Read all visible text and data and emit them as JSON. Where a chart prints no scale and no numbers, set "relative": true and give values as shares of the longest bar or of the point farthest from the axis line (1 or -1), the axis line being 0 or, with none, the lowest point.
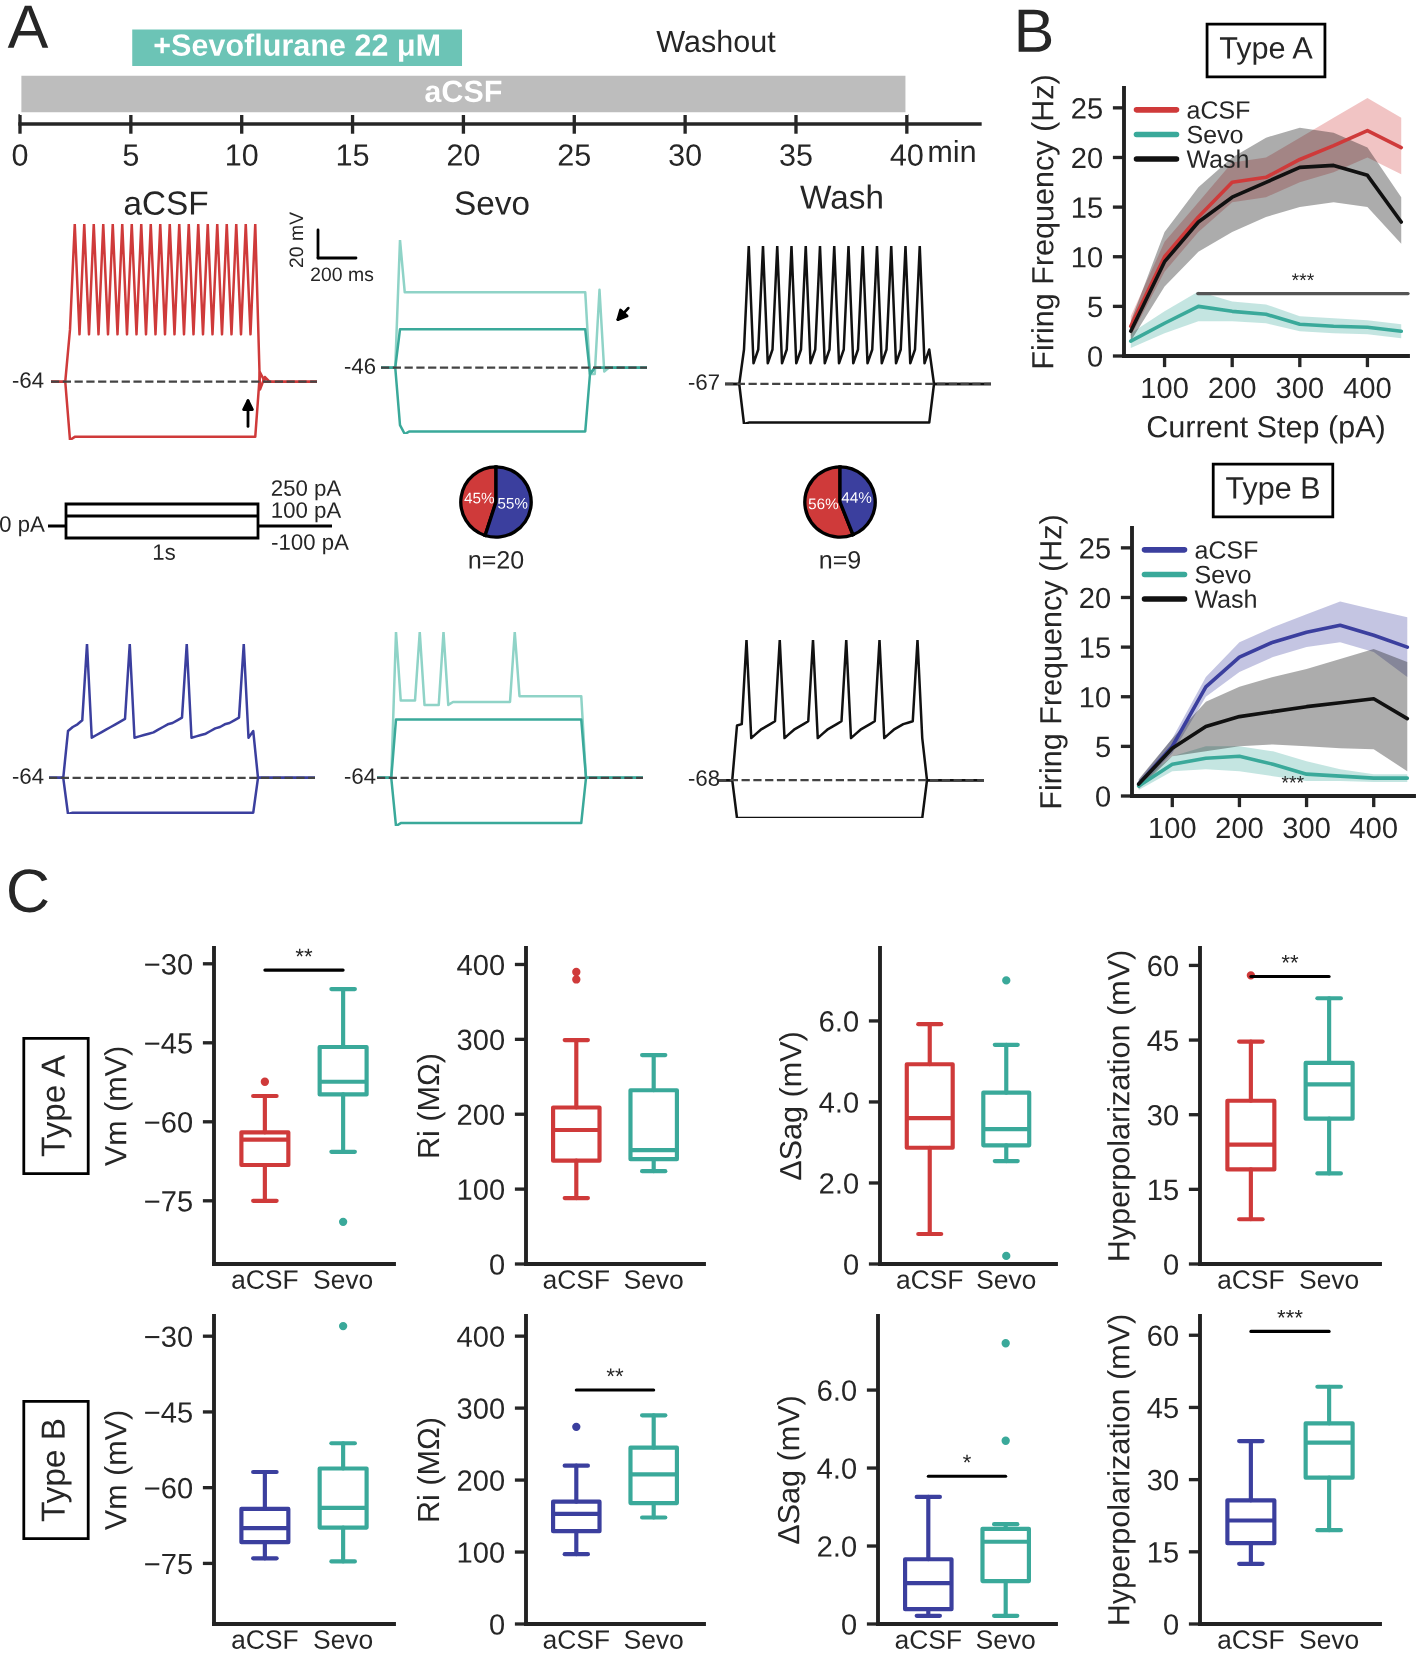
{
  "chart_data": [
    {
      "type": "bar",
      "orientation": "horizontal",
      "categories": [
        null,
        null
      ],
      "base": [
        5,
        0
      ],
      "values": [
        15,
        40
      ],
      "colors": [
        "#6cc4b6",
        "#bdbdbd"
      ],
      "value_labels": [
        "+Sevoflurane 22 μM",
        "aCSF"
      ],
      "xlabel": "min",
      "xlim": [
        0,
        43.3
      ],
      "xticks": [
        0,
        5,
        10,
        15,
        20,
        25,
        30,
        35,
        40
      ],
      "annotations": [
        "A",
        "Washout"
      ]
    },
    {
      "type": "line",
      "relative": true,
      "title": "aCSF",
      "annotations": [
        "-64",
        "20 mV",
        "200 ms"
      ],
      "ref_lines": [
        {
          "axis": "y",
          "value": 0,
          "line_style": "dashed",
          "color": "#444444"
        }
      ],
      "categories": [
        null,
        null,
        null,
        null,
        null,
        null,
        null,
        null,
        null,
        null,
        null,
        null,
        null,
        null,
        null,
        null,
        null,
        null,
        null,
        null,
        null,
        null,
        null,
        null,
        null,
        null,
        null,
        null,
        null,
        null,
        null,
        null,
        null,
        null,
        null,
        null,
        null,
        null,
        null,
        null,
        null,
        null,
        null,
        null,
        null,
        null,
        null,
        null,
        null,
        null,
        null,
        null,
        null,
        null,
        null,
        null,
        null
      ],
      "series": [
        {
          "color": "#cf3a3a",
          "values": [
            0,
            0,
            0,
            0,
            0.33,
            1,
            0.3,
            1,
            0.3,
            1,
            0.3,
            1,
            0.3,
            1,
            0.3,
            1,
            0.3,
            1,
            0.3,
            1,
            0.3,
            1,
            0.3,
            1,
            0.3,
            1,
            0.3,
            1,
            0.3,
            1,
            0.3,
            1,
            0.3,
            1,
            0.3,
            1,
            0.3,
            1,
            0.3,
            1,
            0.3,
            1,
            0.3,
            1,
            -0.05,
            0.03,
            0,
            0,
            0,
            0,
            0,
            0,
            0,
            0,
            0,
            0,
            0
          ]
        },
        {
          "color": "#cf3a3a",
          "values": [
            0,
            0,
            0,
            0,
            -0.37,
            -0.35,
            -0.35,
            -0.35,
            -0.35,
            -0.35,
            -0.35,
            -0.35,
            -0.35,
            -0.35,
            -0.35,
            -0.35,
            -0.35,
            -0.35,
            -0.35,
            -0.35,
            -0.35,
            -0.35,
            -0.35,
            -0.35,
            -0.35,
            -0.35,
            -0.35,
            -0.35,
            -0.35,
            -0.35,
            -0.35,
            -0.35,
            -0.35,
            -0.35,
            -0.35,
            -0.35,
            -0.35,
            -0.35,
            -0.35,
            -0.35,
            -0.35,
            -0.35,
            -0.35,
            -0.35,
            0.06,
            0,
            0,
            0,
            0,
            0,
            0,
            0,
            0,
            0,
            0,
            0,
            0
          ]
        }
      ]
    },
    {
      "type": "line",
      "relative": true,
      "title": "Sevo",
      "annotations": [
        "-46"
      ],
      "ref_lines": [
        {
          "axis": "y",
          "value": 0,
          "line_style": "dashed",
          "color": "#444444"
        }
      ],
      "categories": [
        null,
        null,
        null,
        null,
        null,
        null,
        null,
        null,
        null,
        null,
        null,
        null,
        null,
        null,
        null,
        null,
        null,
        null,
        null,
        null,
        null,
        null,
        null,
        null,
        null,
        null,
        null,
        null,
        null,
        null,
        null,
        null,
        null,
        null,
        null,
        null,
        null,
        null,
        null,
        null,
        null,
        null,
        null,
        null,
        null,
        null,
        null,
        null,
        null,
        null,
        null,
        null,
        null,
        null,
        null,
        null,
        null
      ],
      "series": [
        {
          "color": "#8fd3c7",
          "values": [
            0,
            0,
            0,
            0,
            1,
            0.59,
            0.59,
            0.59,
            0.59,
            0.59,
            0.59,
            0.59,
            0.59,
            0.59,
            0.59,
            0.59,
            0.59,
            0.59,
            0.59,
            0.59,
            0.59,
            0.59,
            0.59,
            0.59,
            0.59,
            0.59,
            0.59,
            0.59,
            0.59,
            0.59,
            0.59,
            0.59,
            0.59,
            0.59,
            0.59,
            0.59,
            0.59,
            0.59,
            0.59,
            0.59,
            0.59,
            0.59,
            0.59,
            0.59,
            -0.05,
            -0.05,
            0.61,
            -0.03,
            0,
            0,
            0,
            0,
            0,
            0,
            0,
            0,
            0
          ]
        },
        {
          "color": "#3aa99a",
          "values": [
            0,
            0,
            0,
            0,
            0.3,
            0.3,
            0.3,
            0.3,
            0.3,
            0.3,
            0.3,
            0.3,
            0.3,
            0.3,
            0.3,
            0.3,
            0.3,
            0.3,
            0.3,
            0.3,
            0.3,
            0.3,
            0.3,
            0.3,
            0.3,
            0.3,
            0.3,
            0.3,
            0.3,
            0.3,
            0.3,
            0.3,
            0.3,
            0.3,
            0.3,
            0.3,
            0.3,
            0.3,
            0.3,
            0.3,
            0.3,
            0.3,
            0.3,
            0.3,
            -0.05,
            0,
            0,
            0,
            0,
            0,
            0,
            0,
            0,
            0,
            0,
            0,
            0
          ]
        },
        {
          "color": "#3aa99a",
          "values": [
            0,
            0,
            0,
            0,
            -0.45,
            -0.52,
            -0.5,
            -0.5,
            -0.5,
            -0.5,
            -0.5,
            -0.5,
            -0.5,
            -0.5,
            -0.5,
            -0.5,
            -0.5,
            -0.5,
            -0.5,
            -0.5,
            -0.5,
            -0.5,
            -0.5,
            -0.5,
            -0.5,
            -0.5,
            -0.5,
            -0.5,
            -0.5,
            -0.5,
            -0.5,
            -0.5,
            -0.5,
            -0.5,
            -0.5,
            -0.5,
            -0.5,
            -0.5,
            -0.5,
            -0.5,
            -0.5,
            -0.5,
            -0.5,
            -0.5,
            -0.05,
            0,
            0,
            0,
            0,
            0,
            0,
            0,
            0,
            0,
            0,
            0,
            0
          ]
        }
      ]
    },
    {
      "type": "line",
      "relative": true,
      "title": "Wash",
      "annotations": [
        "-67"
      ],
      "ref_lines": [
        {
          "axis": "y",
          "value": 0,
          "line_style": "dashed",
          "color": "#444444"
        }
      ],
      "categories": [
        null,
        null,
        null,
        null,
        null,
        null,
        null,
        null,
        null,
        null,
        null,
        null,
        null,
        null,
        null,
        null,
        null,
        null,
        null,
        null,
        null,
        null,
        null,
        null,
        null,
        null,
        null,
        null,
        null,
        null,
        null,
        null,
        null,
        null,
        null,
        null,
        null,
        null,
        null,
        null,
        null,
        null,
        null,
        null,
        null,
        null,
        null,
        null,
        null,
        null,
        null,
        null,
        null,
        null,
        null,
        null,
        null
      ],
      "series": [
        {
          "color": "#111111",
          "values": [
            0,
            0,
            0,
            0,
            0.25,
            1,
            0.15,
            0.25,
            1,
            0.15,
            0.25,
            1,
            0.15,
            0.25,
            1,
            0.15,
            0.25,
            1,
            0.15,
            0.25,
            1,
            0.15,
            0.25,
            1,
            0.15,
            0.25,
            1,
            0.15,
            0.25,
            1,
            0.15,
            0.25,
            1,
            0.15,
            0.25,
            1,
            0.15,
            0.25,
            1,
            0.15,
            0.25,
            1,
            0.15,
            0.25,
            0,
            0,
            0,
            0,
            0,
            0,
            0,
            0,
            0,
            0,
            0,
            0,
            0
          ]
        },
        {
          "color": "#111111",
          "values": [
            0,
            0,
            0,
            0,
            -0.29,
            -0.28,
            -0.28,
            -0.28,
            -0.28,
            -0.28,
            -0.28,
            -0.28,
            -0.28,
            -0.28,
            -0.28,
            -0.28,
            -0.28,
            -0.28,
            -0.28,
            -0.28,
            -0.28,
            -0.28,
            -0.28,
            -0.28,
            -0.28,
            -0.28,
            -0.28,
            -0.28,
            -0.28,
            -0.28,
            -0.28,
            -0.28,
            -0.28,
            -0.28,
            -0.28,
            -0.28,
            -0.28,
            -0.28,
            -0.28,
            -0.28,
            -0.28,
            -0.28,
            -0.28,
            -0.28,
            0,
            0,
            0,
            0,
            0,
            0,
            0,
            0,
            0,
            0,
            0,
            0,
            0
          ]
        }
      ]
    },
    {
      "type": "other",
      "annotations": [
        "0 pA",
        "1s",
        "250 pA",
        "100 pA",
        "-100 pA"
      ]
    },
    {
      "type": "pie",
      "categories": [
        null,
        null
      ],
      "values": [
        45,
        55
      ],
      "colors": [
        "#cf3a3a",
        "#3b3f9e"
      ],
      "value_labels": [
        "45%",
        "55%"
      ],
      "annotations": [
        "n=20"
      ]
    },
    {
      "type": "pie",
      "categories": [
        null,
        null
      ],
      "values": [
        56,
        44
      ],
      "colors": [
        "#cf3a3a",
        "#3b3f9e"
      ],
      "value_labels": [
        "56%",
        "44%"
      ],
      "annotations": [
        "n=9"
      ]
    },
    {
      "type": "line",
      "title": "Type A",
      "x": [
        50,
        100,
        150,
        200,
        250,
        300,
        350,
        400,
        450
      ],
      "xlabel": "Current Step (pA)",
      "ylabel": "Firing Frequency (Hz)",
      "xlim": [
        40,
        460
      ],
      "ylim": [
        0,
        27
      ],
      "xticks": [
        100,
        200,
        300,
        400
      ],
      "yticks": [
        0,
        5,
        10,
        15,
        20,
        25
      ],
      "legend": "top left",
      "series": [
        {
          "name": "aCSF",
          "color": "#cf3a3a",
          "values": [
            3,
            10,
            14,
            17.5,
            18,
            19.8,
            21.2,
            22.7,
            21
          ],
          "lower": [
            2,
            8.5,
            12.5,
            15.5,
            16,
            17.5,
            18.5,
            20,
            18.3
          ],
          "upper": [
            4,
            11.5,
            15.5,
            19.5,
            20,
            22,
            24,
            26,
            24
          ]
        },
        {
          "name": "Sevo",
          "color": "#3aa99a",
          "values": [
            1.5,
            3.3,
            5,
            4.5,
            4.2,
            3.2,
            3,
            2.9,
            2.5
          ],
          "lower": [
            0.8,
            2.3,
            3.5,
            3.5,
            3.3,
            2.5,
            2.3,
            2.2,
            1.8
          ],
          "upper": [
            2.3,
            4.5,
            6.5,
            5.5,
            5.2,
            4,
            3.8,
            3.6,
            3.2
          ]
        },
        {
          "name": "Wash",
          "color": "#111111",
          "values": [
            2.5,
            9.5,
            13.5,
            16,
            17.5,
            19,
            19.2,
            18.2,
            13.5
          ],
          "lower": [
            1.5,
            7,
            10.5,
            12.5,
            14,
            15,
            15.5,
            15,
            11.3
          ],
          "upper": [
            3.5,
            12.5,
            17,
            20,
            22,
            23,
            22.5,
            21,
            16
          ]
        }
      ],
      "annotations": [
        "B",
        "***"
      ]
    },
    {
      "type": "line",
      "title": "Type B",
      "x": [
        50,
        100,
        150,
        200,
        250,
        300,
        350,
        400,
        450
      ],
      "ylabel": "Firing Frequency (Hz)",
      "xlim": [
        40,
        460
      ],
      "ylim": [
        0,
        27
      ],
      "xticks": [
        100,
        200,
        300,
        400
      ],
      "yticks": [
        0,
        5,
        10,
        15,
        20,
        25
      ],
      "legend": "top left",
      "series": [
        {
          "name": "aCSF",
          "color": "#3b3f9e",
          "values": [
            1.2,
            5,
            11,
            14,
            15.5,
            16.5,
            17.2,
            16.2,
            15
          ],
          "lower": [
            0.8,
            4.3,
            10,
            12.5,
            14,
            15,
            15.5,
            14.5,
            12
          ],
          "upper": [
            1.6,
            5.8,
            12,
            15.5,
            17,
            18.3,
            19.6,
            18.8,
            18
          ]
        },
        {
          "name": "Sevo",
          "color": "#3aa99a",
          "values": [
            1,
            3.2,
            3.8,
            4,
            3.2,
            2.2,
            2,
            1.8,
            1.8
          ],
          "lower": [
            0.6,
            2.5,
            2.7,
            2.5,
            2,
            1.5,
            1.5,
            1.4,
            1.4
          ],
          "upper": [
            1.4,
            4,
            5,
            5,
            4.5,
            3.5,
            2.7,
            2.2,
            2.2
          ]
        },
        {
          "name": "Wash",
          "color": "#111111",
          "values": [
            1.2,
            4.8,
            7,
            8,
            8.5,
            9,
            9.4,
            9.8,
            7.8
          ],
          "lower": [
            0.7,
            4,
            4.5,
            5,
            5.2,
            5,
            4.8,
            4.7,
            2.5
          ],
          "upper": [
            1.7,
            5.8,
            9.5,
            11,
            12,
            12.8,
            13.8,
            14.8,
            13.5
          ]
        }
      ],
      "annotations": [
        "***"
      ]
    },
    {
      "type": "line",
      "relative": true,
      "annotations": [
        "-64"
      ],
      "ref_lines": [
        {
          "axis": "y",
          "value": 0,
          "line_style": "dashed",
          "color": "#444444"
        }
      ],
      "categories": [
        null,
        null,
        null,
        null,
        null,
        null,
        null,
        null,
        null,
        null,
        null,
        null,
        null,
        null,
        null,
        null,
        null,
        null,
        null,
        null,
        null,
        null,
        null,
        null,
        null,
        null,
        null,
        null,
        null,
        null,
        null,
        null,
        null,
        null,
        null,
        null,
        null,
        null,
        null,
        null,
        null,
        null,
        null,
        null,
        null,
        null,
        null,
        null,
        null,
        null,
        null,
        null,
        null,
        null,
        null,
        null,
        null
      ],
      "series": [
        {
          "color": "#3b3f9e",
          "values": [
            0,
            0,
            0,
            0,
            0.35,
            0.38,
            0.4,
            0.43,
            1,
            0.3,
            0.32,
            0.34,
            0.36,
            0.38,
            0.4,
            0.42,
            0.44,
            1,
            0.3,
            0.31,
            0.32,
            0.33,
            0.34,
            0.36,
            0.38,
            0.4,
            0.41,
            0.43,
            0.45,
            1,
            0.3,
            0.31,
            0.32,
            0.33,
            0.35,
            0.37,
            0.38,
            0.4,
            0.41,
            0.43,
            0.45,
            1,
            0.3,
            0.35,
            0,
            0,
            0,
            0,
            0,
            0,
            0,
            0,
            0,
            0,
            0,
            0,
            0
          ]
        },
        {
          "color": "#3b3f9e",
          "values": [
            0,
            0,
            0,
            0,
            -0.27,
            -0.26,
            -0.26,
            -0.26,
            -0.26,
            -0.26,
            -0.26,
            -0.26,
            -0.26,
            -0.26,
            -0.26,
            -0.26,
            -0.26,
            -0.26,
            -0.26,
            -0.26,
            -0.26,
            -0.26,
            -0.26,
            -0.26,
            -0.26,
            -0.26,
            -0.26,
            -0.26,
            -0.26,
            -0.26,
            -0.26,
            -0.26,
            -0.26,
            -0.26,
            -0.26,
            -0.26,
            -0.26,
            -0.26,
            -0.26,
            -0.26,
            -0.26,
            -0.26,
            -0.26,
            -0.26,
            0,
            0,
            0,
            0,
            0,
            0,
            0,
            0,
            0,
            0,
            0,
            0,
            0
          ]
        }
      ]
    },
    {
      "type": "line",
      "relative": true,
      "annotations": [
        "-64"
      ],
      "ref_lines": [
        {
          "axis": "y",
          "value": 0,
          "line_style": "dashed",
          "color": "#444444"
        }
      ],
      "categories": [
        null,
        null,
        null,
        null,
        null,
        null,
        null,
        null,
        null,
        null,
        null,
        null,
        null,
        null,
        null,
        null,
        null,
        null,
        null,
        null,
        null,
        null,
        null,
        null,
        null,
        null,
        null,
        null,
        null,
        null,
        null,
        null,
        null,
        null,
        null,
        null,
        null,
        null,
        null,
        null,
        null,
        null,
        null,
        null,
        null,
        null,
        null,
        null,
        null,
        null,
        null,
        null,
        null,
        null,
        null,
        null,
        null
      ],
      "series": [
        {
          "color": "#8fd3c7",
          "values": [
            0,
            0,
            0,
            0,
            1,
            0.53,
            0.53,
            0.53,
            0.53,
            1,
            0.5,
            0.5,
            0.5,
            0.5,
            1,
            0.5,
            0.52,
            0.52,
            0.52,
            0.52,
            0.52,
            0.52,
            0.52,
            0.52,
            0.52,
            0.52,
            0.52,
            0.52,
            0.52,
            1,
            0.56,
            0.56,
            0.56,
            0.56,
            0.56,
            0.56,
            0.56,
            0.56,
            0.56,
            0.56,
            0.56,
            0.56,
            0.56,
            0.56,
            0,
            0,
            0,
            0,
            0,
            0,
            0,
            0,
            0,
            0,
            0,
            0,
            0
          ]
        },
        {
          "color": "#3aa99a",
          "values": [
            0,
            0,
            0,
            0,
            0.4,
            0.4,
            0.4,
            0.4,
            0.4,
            0.4,
            0.4,
            0.4,
            0.4,
            0.4,
            0.4,
            0.4,
            0.4,
            0.4,
            0.4,
            0.4,
            0.4,
            0.4,
            0.4,
            0.4,
            0.4,
            0.4,
            0.4,
            0.4,
            0.4,
            0.4,
            0.4,
            0.4,
            0.4,
            0.4,
            0.4,
            0.4,
            0.4,
            0.4,
            0.4,
            0.4,
            0.4,
            0.4,
            0.4,
            0.4,
            0,
            0,
            0,
            0,
            0,
            0,
            0,
            0,
            0,
            0,
            0,
            0,
            0
          ]
        },
        {
          "color": "#3aa99a",
          "values": [
            0,
            0,
            0,
            0,
            -0.33,
            -0.31,
            -0.31,
            -0.31,
            -0.31,
            -0.31,
            -0.31,
            -0.31,
            -0.31,
            -0.31,
            -0.31,
            -0.31,
            -0.31,
            -0.31,
            -0.31,
            -0.31,
            -0.31,
            -0.31,
            -0.31,
            -0.31,
            -0.31,
            -0.31,
            -0.31,
            -0.31,
            -0.31,
            -0.31,
            -0.31,
            -0.31,
            -0.31,
            -0.31,
            -0.31,
            -0.31,
            -0.31,
            -0.31,
            -0.31,
            -0.31,
            -0.31,
            -0.31,
            -0.31,
            -0.31,
            0,
            0,
            0,
            0,
            0,
            0,
            0,
            0,
            0,
            0,
            0,
            0,
            0
          ]
        }
      ]
    },
    {
      "type": "line",
      "relative": true,
      "annotations": [
        "-68"
      ],
      "ref_lines": [
        {
          "axis": "y",
          "value": 0,
          "line_style": "dashed",
          "color": "#444444"
        }
      ],
      "categories": [
        null,
        null,
        null,
        null,
        null,
        null,
        null,
        null,
        null,
        null,
        null,
        null,
        null,
        null,
        null,
        null,
        null,
        null,
        null,
        null,
        null,
        null,
        null,
        null,
        null,
        null,
        null,
        null,
        null,
        null,
        null,
        null,
        null,
        null,
        null,
        null,
        null,
        null,
        null,
        null,
        null,
        null,
        null,
        null,
        null,
        null,
        null,
        null,
        null,
        null,
        null,
        null,
        null,
        null,
        null,
        null,
        null
      ],
      "series": [
        {
          "color": "#111111",
          "values": [
            0,
            0,
            0,
            0,
            0.39,
            0.4,
            1,
            0.3,
            0.33,
            0.36,
            0.38,
            0.4,
            0.42,
            1,
            0.3,
            0.33,
            0.36,
            0.38,
            0.4,
            0.42,
            1,
            0.3,
            0.33,
            0.36,
            0.38,
            0.4,
            0.42,
            1,
            0.3,
            0.33,
            0.36,
            0.38,
            0.4,
            0.42,
            1,
            0.3,
            0.33,
            0.36,
            0.38,
            0.4,
            0.41,
            0.42,
            1,
            0.3,
            0,
            0,
            0,
            0,
            0,
            0,
            0,
            0,
            0,
            0,
            0,
            0,
            0
          ]
        },
        {
          "color": "#111111",
          "values": [
            0,
            0,
            0,
            0,
            -0.27,
            -0.27,
            -0.27,
            -0.27,
            -0.27,
            -0.27,
            -0.27,
            -0.27,
            -0.27,
            -0.27,
            -0.27,
            -0.27,
            -0.27,
            -0.27,
            -0.27,
            -0.27,
            -0.27,
            -0.27,
            -0.27,
            -0.27,
            -0.27,
            -0.27,
            -0.27,
            -0.27,
            -0.27,
            -0.27,
            -0.27,
            -0.27,
            -0.27,
            -0.27,
            -0.27,
            -0.27,
            -0.27,
            -0.27,
            -0.27,
            -0.27,
            -0.27,
            -0.27,
            -0.27,
            -0.27,
            0,
            0,
            0,
            0,
            0,
            0,
            0,
            0,
            0,
            0,
            0,
            0,
            0
          ]
        }
      ]
    },
    {
      "type": "box",
      "categories": [
        "aCSF",
        "Sevo"
      ],
      "colors": [
        "#cf3a3a",
        "#3aa99a"
      ],
      "ylabel": "Vm (mV)",
      "ylim": [
        -87,
        -27
      ],
      "yticks": [
        {
          "value": -30,
          "label": "−30"
        },
        {
          "value": -45,
          "label": "−45"
        },
        {
          "value": -60,
          "label": "−60"
        },
        {
          "value": -75,
          "label": "−75"
        }
      ],
      "boxes": [
        {
          "low": -75,
          "q1": -68.2,
          "median": -63.4,
          "q3": -62,
          "high": -55.1,
          "outliers": [
            -52.4
          ]
        },
        {
          "low": -65.7,
          "q1": -54.8,
          "median": -52.4,
          "q3": -45.8,
          "high": -34.8,
          "outliers": [
            -79
          ]
        }
      ],
      "annotations": [
        "C",
        "Type A",
        "**"
      ]
    },
    {
      "type": "box",
      "categories": [
        "aCSF",
        "Sevo"
      ],
      "colors": [
        "#cf3a3a",
        "#3aa99a"
      ],
      "ylabel": "Ri (MΩ)",
      "ylim": [
        0,
        422
      ],
      "yticks": [
        0,
        100,
        200,
        300,
        400
      ],
      "boxes": [
        {
          "low": 88,
          "q1": 138,
          "median": 179,
          "q3": 209,
          "high": 299,
          "outliers": [
            390,
            380
          ]
        },
        {
          "low": 124,
          "q1": 140,
          "median": 152,
          "q3": 232,
          "high": 279
        }
      ]
    },
    {
      "type": "box",
      "categories": [
        "aCSF",
        "Sevo"
      ],
      "colors": [
        "#cf3a3a",
        "#3aa99a"
      ],
      "ylabel": "ΔSag (mV)",
      "ylim": [
        0,
        7.8
      ],
      "yticks": [
        0,
        {
          "value": 2,
          "label": "2.0"
        },
        {
          "value": 4,
          "label": "4.0"
        },
        {
          "value": 6,
          "label": "6.0"
        }
      ],
      "boxes": [
        {
          "low": 0.74,
          "q1": 2.87,
          "median": 3.6,
          "q3": 4.93,
          "high": 5.92
        },
        {
          "low": 2.54,
          "q1": 2.93,
          "median": 3.33,
          "q3": 4.23,
          "high": 5.41,
          "outliers": [
            7.0,
            0.2
          ]
        }
      ]
    },
    {
      "type": "box",
      "categories": [
        "aCSF",
        "Sevo"
      ],
      "colors": [
        "#cf3a3a",
        "#3aa99a"
      ],
      "ylabel": "Hyperpolarization (mV)",
      "ylim": [
        0,
        63.5
      ],
      "yticks": [
        0,
        15,
        30,
        45,
        60
      ],
      "boxes": [
        {
          "low": 9,
          "q1": 19,
          "median": 24,
          "q3": 32.8,
          "high": 44.7,
          "outliers": [
            58
          ]
        },
        {
          "low": 18.2,
          "q1": 29.2,
          "median": 36.1,
          "q3": 40.4,
          "high": 53.4
        }
      ],
      "annotations": [
        "**"
      ]
    },
    {
      "type": "box",
      "categories": [
        "aCSF",
        "Sevo"
      ],
      "colors": [
        "#3b3f9e",
        "#3aa99a"
      ],
      "ylabel": "Vm (mV)",
      "ylim": [
        -87,
        -26
      ],
      "yticks": [
        {
          "value": -30,
          "label": "−30"
        },
        {
          "value": -45,
          "label": "−45"
        },
        {
          "value": -60,
          "label": "−60"
        },
        {
          "value": -75,
          "label": "−75"
        }
      ],
      "boxes": [
        {
          "low": -74,
          "q1": -70.8,
          "median": -68,
          "q3": -64.2,
          "high": -56.9
        },
        {
          "low": -74.6,
          "q1": -67.9,
          "median": -64,
          "q3": -56.2,
          "high": -51.2,
          "outliers": [
            -28
          ]
        }
      ],
      "annotations": [
        "Type B"
      ]
    },
    {
      "type": "box",
      "categories": [
        "aCSF",
        "Sevo"
      ],
      "colors": [
        "#3b3f9e",
        "#3aa99a"
      ],
      "ylabel": "Ri (MΩ)",
      "ylim": [
        0,
        428
      ],
      "yticks": [
        0,
        100,
        200,
        300,
        400
      ],
      "boxes": [
        {
          "low": 97,
          "q1": 129,
          "median": 153,
          "q3": 170,
          "high": 220,
          "outliers": [
            274
          ]
        },
        {
          "low": 148,
          "q1": 168,
          "median": 208,
          "q3": 245,
          "high": 290
        }
      ],
      "annotations": [
        "**"
      ]
    },
    {
      "type": "box",
      "categories": [
        "aCSF",
        "Sevo"
      ],
      "colors": [
        "#3b3f9e",
        "#3aa99a"
      ],
      "ylabel": "ΔSag (mV)",
      "ylim": [
        0,
        7.9
      ],
      "yticks": [
        0,
        {
          "value": 2,
          "label": "2.0"
        },
        {
          "value": 4,
          "label": "4.0"
        },
        {
          "value": 6,
          "label": "6.0"
        }
      ],
      "boxes": [
        {
          "low": 0.21,
          "q1": 0.38,
          "median": 1.05,
          "q3": 1.66,
          "high": 3.26
        },
        {
          "low": 0.21,
          "q1": 1.1,
          "median": 2.11,
          "q3": 2.44,
          "high": 2.56,
          "outliers": [
            7.2,
            4.7
          ]
        }
      ],
      "annotations": [
        "*"
      ]
    },
    {
      "type": "box",
      "categories": [
        "aCSF",
        "Sevo"
      ],
      "colors": [
        "#3b3f9e",
        "#3aa99a"
      ],
      "ylabel": "Hyperpolarization (mV)",
      "ylim": [
        0,
        64
      ],
      "yticks": [
        0,
        15,
        30,
        45,
        60
      ],
      "boxes": [
        {
          "low": 12.5,
          "q1": 16.8,
          "median": 21.5,
          "q3": 25.7,
          "high": 38
        },
        {
          "low": 19.5,
          "q1": 30.4,
          "median": 37.7,
          "q3": 41.7,
          "high": 49.3
        }
      ],
      "annotations": [
        "***"
      ]
    }
  ]
}
